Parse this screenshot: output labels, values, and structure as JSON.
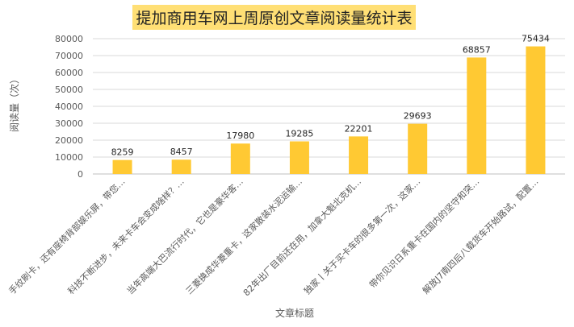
{
  "chart_data": {
    "type": "bar",
    "title": "提加商用车网上周原创文章阅读量统计表",
    "xlabel": "文章标题",
    "ylabel": "阅读量（次）",
    "ylim": [
      0,
      80000
    ],
    "yticks": [
      0,
      10000,
      20000,
      30000,
      40000,
      50000,
      60000,
      70000,
      80000
    ],
    "grid": true,
    "categories": [
      "手纹刷卡，还有座椅背部娱乐屏，带您…",
      "科技不断进步，未来卡车会变成啥样？…",
      "当年高端大巴流行时代，它也是豪华客…",
      "三菱换成华菱重卡，这家散装水泥运输…",
      "82年出厂目前还在用，加拿大魁北克机…",
      "独家丨关于买卡车的很多第一次，这家…",
      "带你见识日系重卡在国内的坚守和突…",
      "解放J7南四后八载货车开始路试，配置…"
    ],
    "values": [
      8259,
      8457,
      17980,
      19285,
      22201,
      29693,
      68857,
      75434
    ],
    "colors": {
      "bar": "#ffc933",
      "title_bg": "#ffdf75",
      "grid": "#d9d9d9",
      "text": "#595959"
    }
  }
}
